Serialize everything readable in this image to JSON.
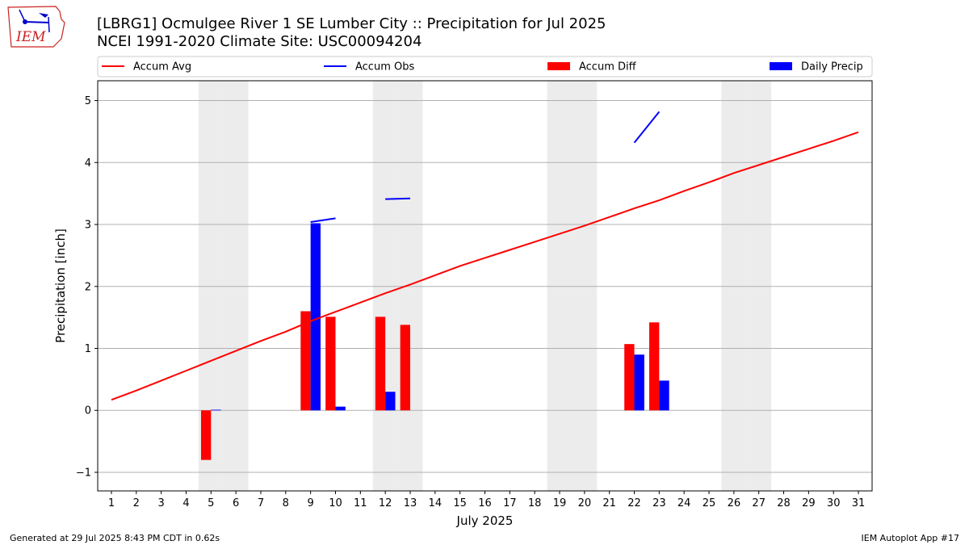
{
  "logo": {
    "text": "IEM"
  },
  "chart_data": {
    "type": "bar",
    "title": "[LBRG1] Ocmulgee River 1 SE Lumber City :: Precipitation for Jul 2025",
    "subtitle": "NCEI 1991-2020 Climate Site: USC00094204",
    "xlabel": "July 2025",
    "ylabel": "Precipitation [inch]",
    "ylim": [
      -1.3,
      5.32
    ],
    "yticks": [
      -1,
      0,
      1,
      2,
      3,
      4,
      5
    ],
    "ytick_labels": [
      "−1",
      "0",
      "1",
      "2",
      "3",
      "4",
      "5"
    ],
    "days": [
      "1",
      "2",
      "3",
      "4",
      "5",
      "6",
      "7",
      "8",
      "9",
      "10",
      "11",
      "12",
      "13",
      "14",
      "15",
      "16",
      "17",
      "18",
      "19",
      "20",
      "21",
      "22",
      "23",
      "24",
      "25",
      "26",
      "27",
      "28",
      "29",
      "30",
      "31"
    ],
    "weekend_days": [
      5,
      6,
      12,
      13,
      19,
      20,
      26,
      27
    ],
    "grid": true,
    "legend_position": "top",
    "legend": [
      {
        "label": "Accum Avg",
        "kind": "line",
        "color": "#ff0000"
      },
      {
        "label": "Accum Obs",
        "kind": "line",
        "color": "#0000ff"
      },
      {
        "label": "Accum Diff",
        "kind": "bar",
        "color": "#ff0000"
      },
      {
        "label": "Daily Precip",
        "kind": "bar",
        "color": "#0000ff"
      }
    ],
    "series": [
      {
        "name": "Accum Avg",
        "kind": "line",
        "color": "#ff0000",
        "values": [
          0.17,
          0.32,
          0.48,
          0.64,
          0.8,
          0.96,
          1.12,
          1.27,
          1.44,
          1.59,
          1.74,
          1.89,
          2.03,
          2.18,
          2.33,
          2.46,
          2.59,
          2.72,
          2.85,
          2.98,
          3.12,
          3.26,
          3.39,
          3.54,
          3.68,
          3.83,
          3.96,
          4.09,
          4.22,
          4.35,
          4.49
        ]
      },
      {
        "name": "Accum Obs",
        "kind": "segments",
        "color": "#0000ff",
        "segments": [
          {
            "days": [
              9,
              10
            ],
            "values": [
              3.04,
              3.1
            ]
          },
          {
            "days": [
              12,
              13
            ],
            "values": [
              3.41,
              3.42
            ]
          },
          {
            "days": [
              22,
              23
            ],
            "values": [
              4.32,
              4.82
            ]
          }
        ]
      },
      {
        "name": "Accum Diff",
        "kind": "bar",
        "color": "#ff0000",
        "points": [
          {
            "day": 5,
            "value": -0.8
          },
          {
            "day": 9,
            "value": 1.6
          },
          {
            "day": 10,
            "value": 1.51
          },
          {
            "day": 12,
            "value": 1.51
          },
          {
            "day": 13,
            "value": 1.38
          },
          {
            "day": 22,
            "value": 1.07
          },
          {
            "day": 23,
            "value": 1.42
          }
        ]
      },
      {
        "name": "Daily Precip",
        "kind": "bar",
        "color": "#0000ff",
        "points": [
          {
            "day": 5,
            "value": 0.01
          },
          {
            "day": 9,
            "value": 3.02
          },
          {
            "day": 10,
            "value": 0.06
          },
          {
            "day": 12,
            "value": 0.3
          },
          {
            "day": 22,
            "value": 0.9
          },
          {
            "day": 23,
            "value": 0.48
          }
        ]
      }
    ]
  },
  "footer": {
    "left": "Generated at 29 Jul 2025 8:43 PM CDT in 0.62s",
    "right": "IEM Autoplot App #17"
  }
}
